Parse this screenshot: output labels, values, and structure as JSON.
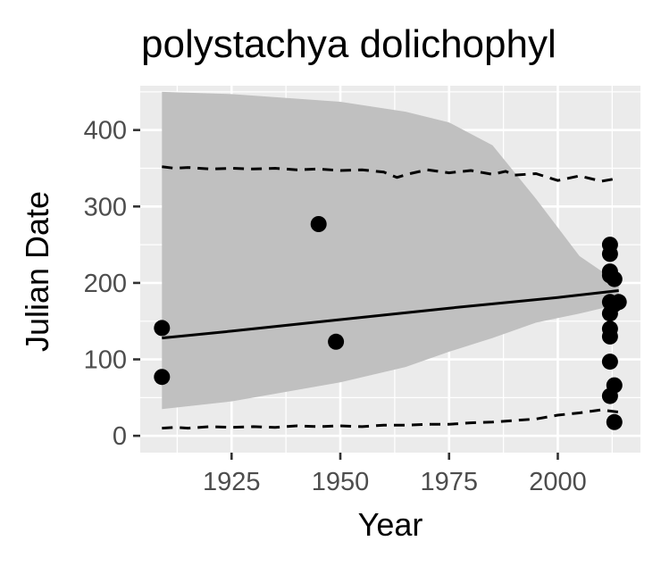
{
  "chart_data": {
    "type": "scatter",
    "title": "polystachya dolichophyl",
    "xlabel": "Year",
    "ylabel": "Julian Date",
    "xlim": [
      1904,
      2019
    ],
    "ylim": [
      -22,
      458
    ],
    "x_ticks": [
      1925,
      1950,
      1975,
      2000
    ],
    "y_ticks": [
      0,
      100,
      200,
      300,
      400
    ],
    "grid": true,
    "legend": "none",
    "colors": {
      "panel": "#ebebeb",
      "grid": "#ffffff",
      "points": "#000000",
      "ribbon": "#c0c0c0",
      "tick_label": "#4d4d4d"
    },
    "points": [
      {
        "x": 1909,
        "y": 141
      },
      {
        "x": 1909,
        "y": 77
      },
      {
        "x": 1945,
        "y": 277
      },
      {
        "x": 1949,
        "y": 123
      },
      {
        "x": 2012,
        "y": 250
      },
      {
        "x": 2012,
        "y": 238
      },
      {
        "x": 2012,
        "y": 215
      },
      {
        "x": 2012,
        "y": 210
      },
      {
        "x": 2012,
        "y": 175
      },
      {
        "x": 2012,
        "y": 160
      },
      {
        "x": 2012,
        "y": 140
      },
      {
        "x": 2012,
        "y": 130
      },
      {
        "x": 2012,
        "y": 97
      },
      {
        "x": 2012,
        "y": 52
      },
      {
        "x": 2013,
        "y": 205
      },
      {
        "x": 2013,
        "y": 172
      },
      {
        "x": 2013,
        "y": 66
      },
      {
        "x": 2013,
        "y": 18
      },
      {
        "x": 2014,
        "y": 175
      }
    ],
    "fit_line": {
      "x": [
        1909,
        1925,
        1950,
        1975,
        2000,
        2014
      ],
      "y": [
        128,
        137,
        152,
        167,
        181,
        190
      ]
    },
    "confidence_band": {
      "x": [
        1909,
        1925,
        1950,
        1965,
        1975,
        1985,
        1995,
        2005,
        2014
      ],
      "upper": [
        450,
        447,
        437,
        424,
        410,
        380,
        310,
        235,
        200
      ],
      "lower": [
        35,
        45,
        70,
        90,
        110,
        128,
        148,
        160,
        172
      ]
    },
    "upper_quantile": {
      "x": [
        1909,
        1912,
        1915,
        1920,
        1925,
        1930,
        1935,
        1940,
        1945,
        1950,
        1955,
        1960,
        1963,
        1966,
        1970,
        1975,
        1980,
        1985,
        1988,
        1990,
        1995,
        2000,
        2005,
        2010,
        2014
      ],
      "y": [
        352,
        350,
        351,
        349,
        350,
        349,
        350,
        348,
        349,
        347,
        348,
        345,
        338,
        343,
        348,
        344,
        347,
        342,
        346,
        341,
        343,
        334,
        340,
        333,
        337
      ]
    },
    "lower_quantile": {
      "x": [
        1909,
        1912,
        1915,
        1920,
        1925,
        1930,
        1935,
        1940,
        1945,
        1950,
        1955,
        1960,
        1965,
        1970,
        1975,
        1980,
        1985,
        1990,
        1995,
        2000,
        2005,
        2010,
        2014
      ],
      "y": [
        10,
        11,
        10,
        12,
        11,
        12,
        11,
        13,
        12,
        13,
        12,
        14,
        14,
        15,
        15,
        17,
        18,
        20,
        22,
        27,
        30,
        34,
        31
      ]
    }
  }
}
